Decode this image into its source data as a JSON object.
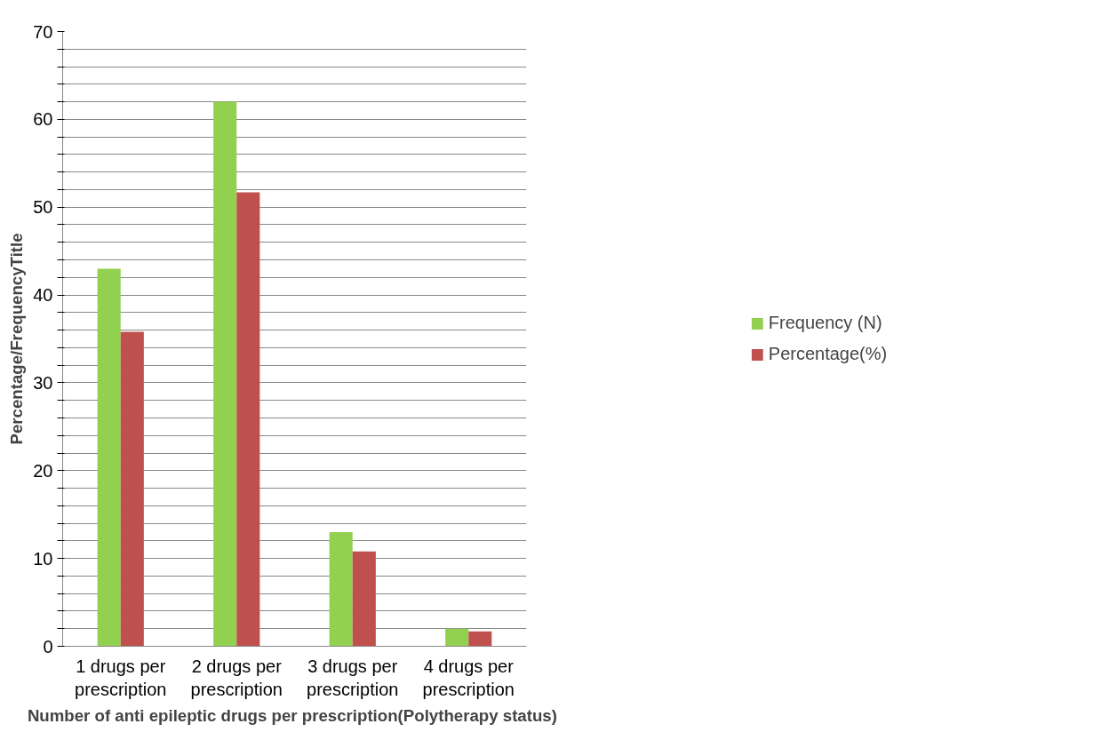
{
  "chart_data": {
    "type": "bar",
    "xlabel": "Number of  anti epileptic drugs per prescription(Polytherapy status)",
    "ylabel": "Percentage/FrequencyTitle",
    "categories": [
      "1 drugs per\nprescription",
      "2 drugs per\nprescription",
      "3 drugs per\nprescription",
      "4 drugs per\nprescription"
    ],
    "series": [
      {
        "name": "Frequency (N)",
        "color": "#92d050",
        "values": [
          43,
          62,
          13,
          2
        ]
      },
      {
        "name": "Percentage(%)",
        "color": "#c0504d",
        "values": [
          35.8,
          51.7,
          10.8,
          1.7
        ]
      }
    ],
    "ylim": [
      0,
      70
    ],
    "yticks": [
      0,
      {
        "value": 2,
        "label": null
      },
      {
        "value": 4,
        "label": null
      },
      {
        "value": 6,
        "label": null
      },
      {
        "value": 8,
        "label": null
      },
      10,
      {
        "value": 12,
        "label": null
      },
      {
        "value": 14,
        "label": null
      },
      {
        "value": 16,
        "label": null
      },
      {
        "value": 18,
        "label": null
      },
      20,
      {
        "value": 22,
        "label": null
      },
      {
        "value": 24,
        "label": null
      },
      {
        "value": 26,
        "label": null
      },
      {
        "value": 28,
        "label": null
      },
      30,
      {
        "value": 32,
        "label": null
      },
      {
        "value": 34,
        "label": null
      },
      {
        "value": 36,
        "label": null
      },
      {
        "value": 38,
        "label": null
      },
      40,
      {
        "value": 42,
        "label": null
      },
      {
        "value": 44,
        "label": null
      },
      {
        "value": 46,
        "label": null
      },
      {
        "value": 48,
        "label": null
      },
      50,
      {
        "value": 52,
        "label": null
      },
      {
        "value": 54,
        "label": null
      },
      {
        "value": 56,
        "label": null
      },
      {
        "value": 58,
        "label": null
      },
      60,
      {
        "value": 62,
        "label": null
      },
      {
        "value": 64,
        "label": null
      },
      {
        "value": 66,
        "label": null
      },
      {
        "value": 68,
        "label": null
      },
      70
    ],
    "grid": "y",
    "legend": "right"
  }
}
